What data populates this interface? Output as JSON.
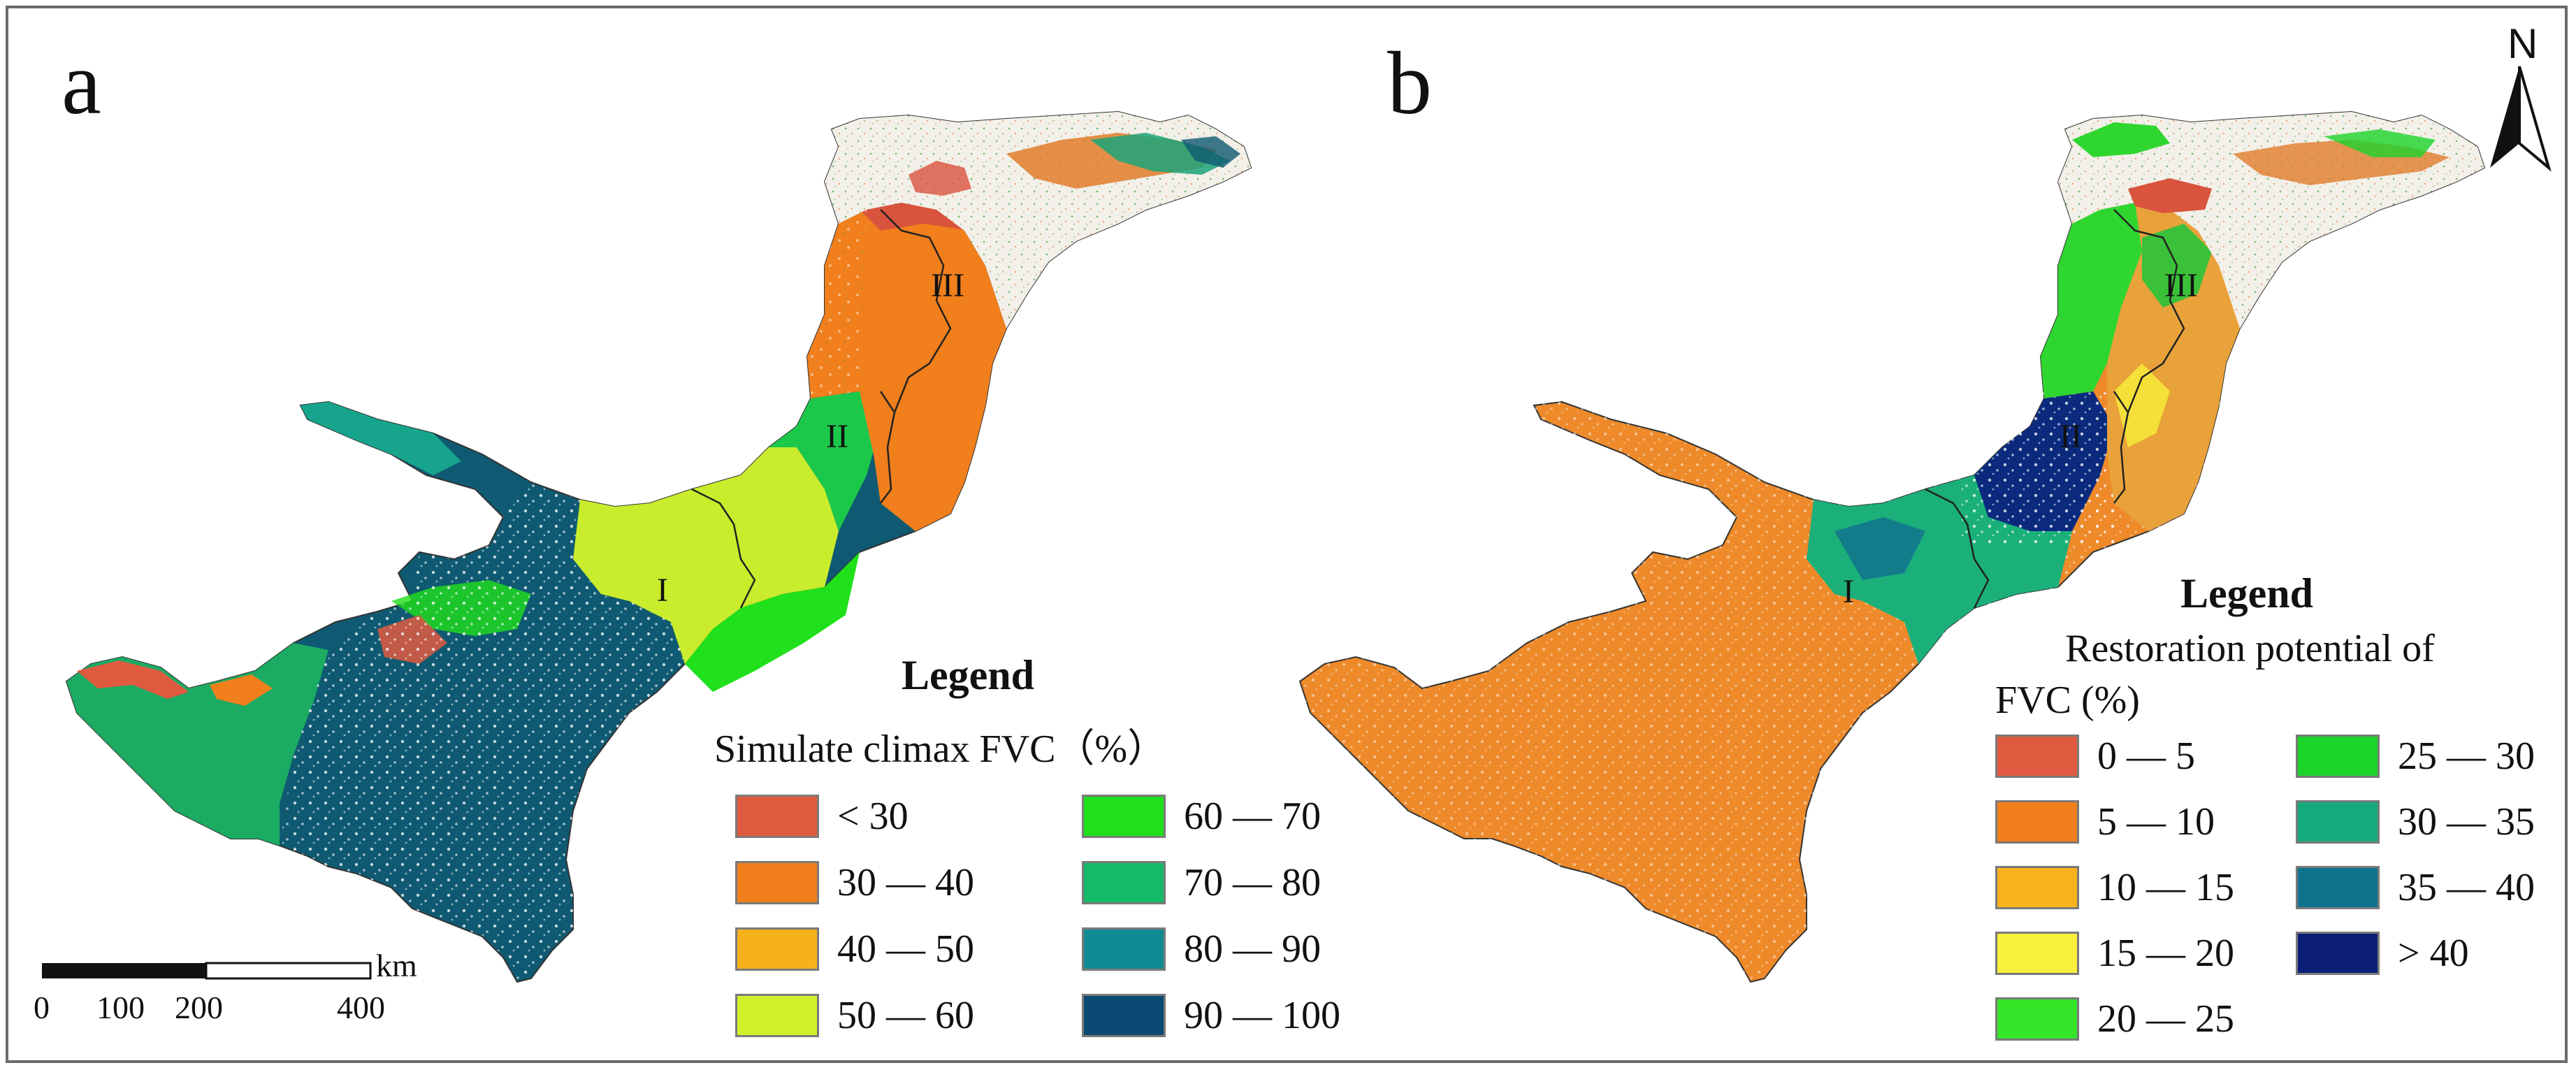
{
  "panels": [
    {
      "letter": "a",
      "legend": {
        "title": "Legend",
        "subtitle": "Simulate climax FVC（%）",
        "items": [
          {
            "label": "< 30",
            "color": "#e05a3f"
          },
          {
            "label": "30 — 40",
            "color": "#f07f1c"
          },
          {
            "label": "40 — 50",
            "color": "#f5b21d"
          },
          {
            "label": "50 — 60",
            "color": "#d2f02a"
          },
          {
            "label": "60 — 70",
            "color": "#1fe01a"
          },
          {
            "label": "70 — 80",
            "color": "#15b96a"
          },
          {
            "label": "80 — 90",
            "color": "#108a93"
          },
          {
            "label": "90 — 100",
            "color": "#0b4a72"
          }
        ]
      },
      "regions": [
        "I",
        "II",
        "III"
      ]
    },
    {
      "letter": "b",
      "legend": {
        "title": "Legend",
        "subtitle_line1": "Restoration potential of",
        "subtitle_line2": "FVC (%)",
        "items": [
          {
            "label": "0 — 5",
            "color": "#e05a3f"
          },
          {
            "label": "5 — 10",
            "color": "#f07f1c"
          },
          {
            "label": "10 — 15",
            "color": "#f8b31c"
          },
          {
            "label": "15 — 20",
            "color": "#f8f03a"
          },
          {
            "label": "20 — 25",
            "color": "#35e52a"
          },
          {
            "label": "25 — 30",
            "color": "#1cd42a"
          },
          {
            "label": "30 — 35",
            "color": "#14ab7c"
          },
          {
            "label": "35 — 40",
            "color": "#10738e"
          },
          {
            "label": "> 40",
            "color": "#0b1f78"
          }
        ]
      },
      "regions": [
        "I",
        "II",
        "III"
      ]
    }
  ],
  "scalebar": {
    "unit": "km",
    "ticks": [
      "0",
      "100",
      "200",
      "400"
    ]
  },
  "north_arrow": {
    "label": "N"
  }
}
